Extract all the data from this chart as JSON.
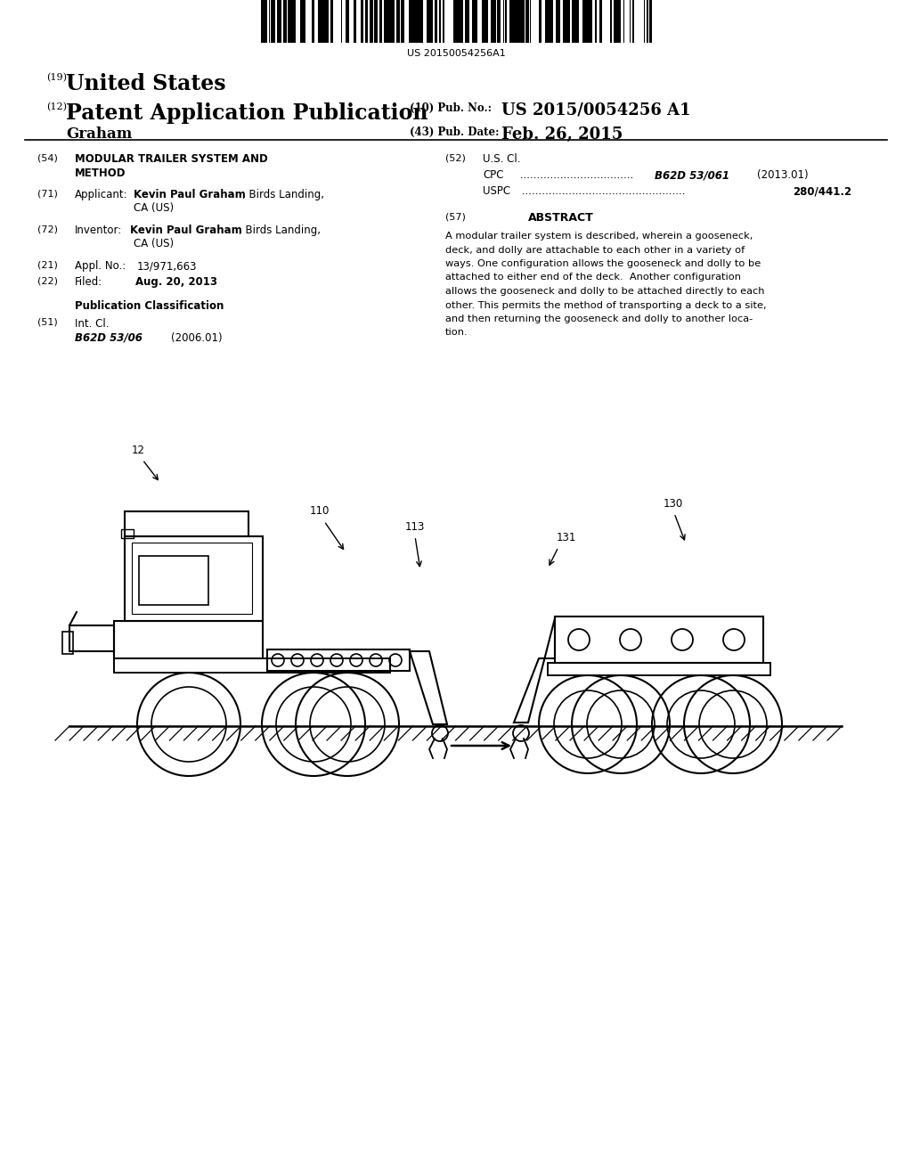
{
  "bg_color": "#ffffff",
  "barcode_text": "US 20150054256A1",
  "header_19_text": "United States",
  "header_12_text": "Patent Application Publication",
  "header_10_label": "(10) Pub. No.:",
  "header_10_val": "US 2015/0054256 A1",
  "header_43_label": "(43) Pub. Date:",
  "header_43_val": "Feb. 26, 2015",
  "header_name": "Graham",
  "abstract_lines": [
    "A modular trailer system is described, wherein a gooseneck,",
    "deck, and dolly are attachable to each other in a variety of",
    "ways. One configuration allows the gooseneck and dolly to be",
    "attached to either end of the deck.  Another configuration",
    "allows the gooseneck and dolly to be attached directly to each",
    "other. This permits the method of transporting a deck to a site,",
    "and then returning the gooseneck and dolly to another loca-",
    "tion."
  ]
}
